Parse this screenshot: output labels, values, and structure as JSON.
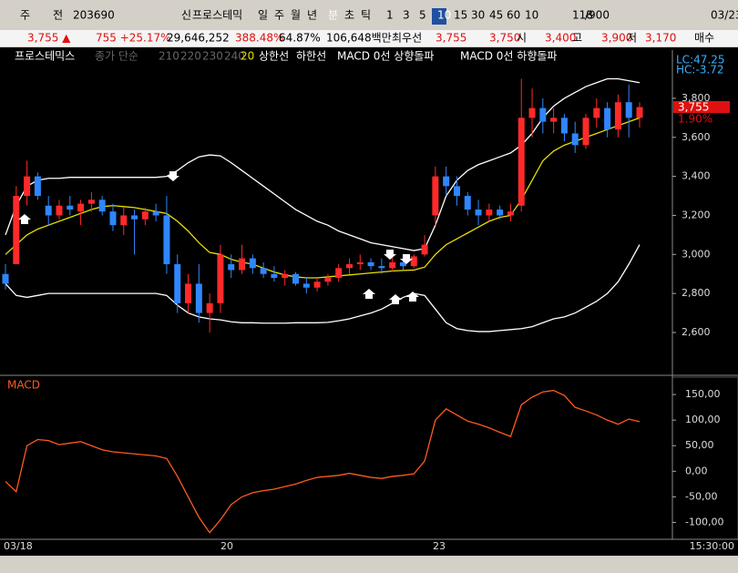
{
  "toolbar": {
    "items": [
      "주",
      "전",
      "203690",
      "신",
      "프로스테믹",
      "일",
      "주",
      "월",
      "년",
      "분",
      "초",
      "틱",
      "1",
      "3",
      "5",
      "10",
      "15",
      "30",
      "45",
      "60",
      "10",
      "118",
      "/900",
      "03/23"
    ]
  },
  "quote_bar": {
    "items": [
      "3,755 ▲",
      "755 +25.17%",
      "29,646,252",
      "388.48%",
      "64.87%",
      "106,648백만",
      "최우선",
      "3,755",
      "3,750",
      "시",
      "3,400",
      "고",
      "3,900",
      "저",
      "3,170",
      "매수"
    ]
  },
  "legend": {
    "items": [
      "프로스테믹스",
      "종가 단순",
      "210",
      "220",
      "230",
      "240",
      "20",
      "상한선",
      "하한선",
      "MACD 0선 상향돌파",
      "MACD 0선 하향돌파"
    ]
  },
  "price_labels": {
    "lc": "LC:47.25",
    "hc": "HC:-3.72",
    "last": "3,755",
    "change": "1.90%"
  },
  "price_chart": {
    "type": "candlestick",
    "ylim": [
      2390,
      4047
    ],
    "yticks": [
      {
        "value": 2600,
        "label": "2,600"
      },
      {
        "value": 2800,
        "label": "2,800"
      },
      {
        "value": 3000,
        "label": "3,000"
      },
      {
        "value": 3200,
        "label": "3,200"
      },
      {
        "value": 3400,
        "label": "3,400"
      },
      {
        "value": 3600,
        "label": "3,600"
      },
      {
        "value": 3800,
        "label": "3,800"
      }
    ],
    "up_color": "#ff2a2a",
    "down_color": "#2f86ff",
    "band_color": "#ffffff",
    "ma_color": "#e8e000",
    "open": [
      2900,
      2950,
      3300,
      3400,
      3250,
      3200,
      3250,
      3220,
      3260,
      3280,
      3220,
      3150,
      3200,
      3180,
      3220,
      3200,
      2950,
      2750,
      2850,
      2700,
      2750,
      2950,
      2920,
      2980,
      2930,
      2900,
      2880,
      2900,
      2850,
      2830,
      2860,
      2880,
      2930,
      2950,
      2960,
      2940,
      2930,
      2960,
      2940,
      3000,
      3200,
      3400,
      3350,
      3300,
      3230,
      3200,
      3230,
      3200,
      3250,
      3700,
      3750,
      3680,
      3700,
      3620,
      3560,
      3700,
      3750,
      3640,
      3780,
      3700
    ],
    "high": [
      2950,
      3350,
      3480,
      3420,
      3300,
      3280,
      3300,
      3280,
      3320,
      3300,
      3260,
      3240,
      3230,
      3240,
      3260,
      3300,
      3000,
      2900,
      2950,
      2800,
      3050,
      3000,
      3050,
      3000,
      2960,
      2940,
      2920,
      2910,
      2880,
      2880,
      2900,
      2950,
      2980,
      3000,
      2980,
      2980,
      2990,
      2980,
      3000,
      3100,
      3450,
      3450,
      3400,
      3320,
      3280,
      3260,
      3250,
      3260,
      3900,
      3850,
      3800,
      3750,
      3720,
      3680,
      3720,
      3800,
      3780,
      3820,
      3870,
      3780
    ],
    "low": [
      2820,
      2950,
      3250,
      3280,
      3150,
      3180,
      3200,
      3150,
      3220,
      3200,
      3120,
      3100,
      3000,
      3150,
      3170,
      2900,
      2700,
      2700,
      2650,
      2600,
      2700,
      2880,
      2900,
      2900,
      2880,
      2860,
      2840,
      2840,
      2800,
      2810,
      2840,
      2860,
      2900,
      2920,
      2920,
      2900,
      2910,
      2920,
      2930,
      2990,
      3150,
      3300,
      3250,
      3200,
      3150,
      3170,
      3180,
      3170,
      3220,
      3600,
      3620,
      3620,
      3580,
      3520,
      3540,
      3650,
      3600,
      3600,
      3600,
      3650
    ],
    "close": [
      2850,
      3300,
      3400,
      3300,
      3200,
      3250,
      3230,
      3260,
      3280,
      3220,
      3150,
      3200,
      3180,
      3220,
      3200,
      2950,
      2750,
      2850,
      2700,
      2750,
      3000,
      2920,
      2980,
      2930,
      2900,
      2880,
      2900,
      2850,
      2830,
      2860,
      2880,
      2930,
      2950,
      2960,
      2940,
      2930,
      2960,
      2940,
      2990,
      3050,
      3400,
      3350,
      3300,
      3230,
      3200,
      3230,
      3200,
      3220,
      3700,
      3750,
      3680,
      3700,
      3620,
      3560,
      3700,
      3750,
      3640,
      3780,
      3700,
      3755
    ],
    "upper": [
      3100,
      3250,
      3350,
      3380,
      3390,
      3390,
      3395,
      3395,
      3395,
      3395,
      3395,
      3395,
      3395,
      3395,
      3395,
      3400,
      3430,
      3470,
      3500,
      3510,
      3505,
      3470,
      3430,
      3390,
      3350,
      3310,
      3270,
      3230,
      3200,
      3170,
      3150,
      3120,
      3100,
      3080,
      3060,
      3050,
      3040,
      3030,
      3020,
      3030,
      3150,
      3300,
      3380,
      3430,
      3460,
      3480,
      3500,
      3520,
      3560,
      3620,
      3700,
      3760,
      3800,
      3830,
      3860,
      3880,
      3900,
      3900,
      3890,
      3880
    ],
    "lower": [
      2850,
      2790,
      2780,
      2790,
      2800,
      2800,
      2800,
      2800,
      2800,
      2800,
      2800,
      2800,
      2800,
      2800,
      2800,
      2790,
      2740,
      2700,
      2680,
      2670,
      2665,
      2655,
      2650,
      2650,
      2648,
      2648,
      2648,
      2650,
      2650,
      2650,
      2652,
      2660,
      2670,
      2685,
      2700,
      2720,
      2750,
      2780,
      2800,
      2790,
      2720,
      2650,
      2620,
      2610,
      2605,
      2605,
      2610,
      2615,
      2620,
      2630,
      2650,
      2670,
      2680,
      2700,
      2730,
      2760,
      2800,
      2860,
      2950,
      3050
    ],
    "ma20": [
      3000,
      3050,
      3100,
      3130,
      3150,
      3170,
      3190,
      3210,
      3230,
      3245,
      3250,
      3245,
      3240,
      3230,
      3220,
      3210,
      3170,
      3120,
      3060,
      3010,
      3000,
      2975,
      2960,
      2950,
      2930,
      2910,
      2895,
      2885,
      2880,
      2880,
      2885,
      2890,
      2895,
      2900,
      2905,
      2910,
      2915,
      2918,
      2920,
      2935,
      3000,
      3050,
      3080,
      3110,
      3140,
      3170,
      3190,
      3200,
      3280,
      3380,
      3480,
      3530,
      3560,
      3580,
      3600,
      3620,
      3640,
      3660,
      3680,
      3700
    ]
  },
  "macd_chart": {
    "type": "line",
    "title": "MACD",
    "color": "#ff5a1e",
    "ylim": [
      -133,
      184
    ],
    "yticks": [
      {
        "value": -100,
        "label": "-100,00"
      },
      {
        "value": -50,
        "label": "-50,00"
      },
      {
        "value": 0,
        "label": "0,00"
      },
      {
        "value": 50,
        "label": "50,00"
      },
      {
        "value": 100,
        "label": "100,00"
      },
      {
        "value": 150,
        "label": "150,00"
      }
    ],
    "values": [
      -20,
      -40,
      50,
      62,
      60,
      52,
      55,
      58,
      50,
      42,
      38,
      36,
      34,
      32,
      30,
      25,
      -10,
      -50,
      -90,
      -120,
      -95,
      -65,
      -50,
      -42,
      -38,
      -35,
      -30,
      -25,
      -18,
      -12,
      -10,
      -8,
      -4,
      -8,
      -12,
      -14,
      -10,
      -8,
      -5,
      20,
      100,
      122,
      110,
      98,
      92,
      85,
      76,
      68,
      130,
      145,
      155,
      158,
      148,
      125,
      118,
      110,
      100,
      92,
      102,
      97
    ]
  },
  "x_labels": [
    "03/18",
    "20",
    "23",
    "15:30:00"
  ]
}
